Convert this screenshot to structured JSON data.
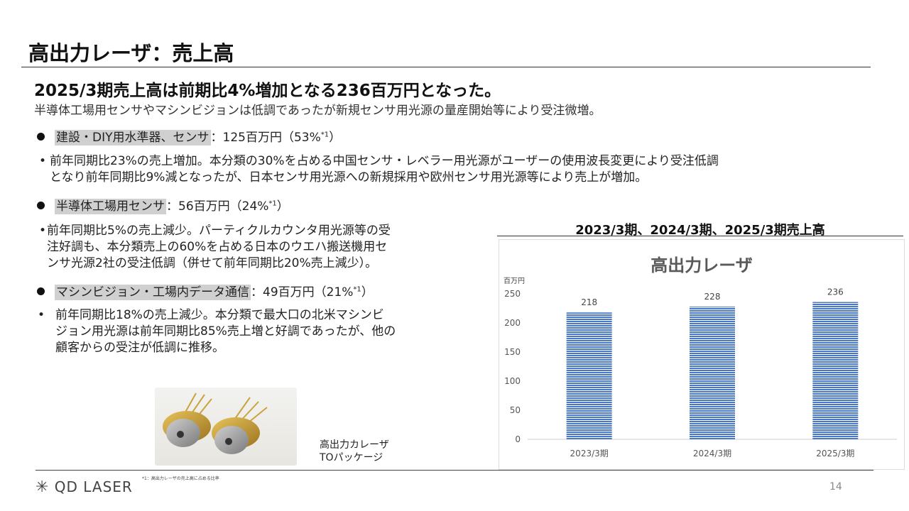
{
  "page": {
    "title": "高出力レーザ：売上高",
    "headline": "2025/3期売上高は前期比4%増加となる236百万円となった。",
    "subline": "半導体工場用センサやマシンビジョンは低調であったが新規センサ用光源の量産開始等により受注微増。"
  },
  "sections": [
    {
      "label": "建設・DIY用水準器、センサ",
      "value": "：125百万円（53%",
      "note": "*1",
      "close": "）",
      "details": [
        "前年同期比23%の売上増加。本分類の30%を占める中国センサ・レベラー用光源がユーザーの使用波長変更により受注低調",
        "となり前年同期比9%減となったが、日本センサ用光源への新規採用や欧州センサ用光源等により売上が増加。"
      ]
    },
    {
      "label": "半導体工場用センサ",
      "value": "：56百万円（24%",
      "note": "*1",
      "close": "）",
      "details": [
        "前年同期比5%の売上減少。パーティクルカウンタ用光源等の受",
        "注好調も、本分類売上の60%を占める日本のウエハ搬送機用セ",
        "ンサ光源2社の受注低調（併せて前年同期比20%売上減少）。"
      ]
    },
    {
      "label": "マシンビジョン・工場内データ通信",
      "value": "：49百万円（21%",
      "note": "*1",
      "close": "）",
      "details": [
        "前年同期比18%の売上減少。本分類で最大口の北米マシンビ",
        "ジョン用光源は前年同期比85%売上増と好調であったが、他の",
        "顧客からの受注が低調に推移。"
      ]
    }
  ],
  "photo": {
    "caption_line1": "高出力カレーザ",
    "caption_line2": "TOパッケージ"
  },
  "chart_heading": "2023/3期、2024/3期、2025/3期売上高",
  "chart_data": {
    "type": "bar",
    "title": "高出力レーザ",
    "ylabel": "百万円",
    "categories": [
      "2023/3期",
      "2024/3期",
      "2025/3期"
    ],
    "values": [
      218,
      228,
      236
    ],
    "ylim": [
      0,
      250
    ],
    "yticks": [
      0,
      50,
      100,
      150,
      200,
      250
    ],
    "bar_color": "#4a78c9",
    "grid": false,
    "legend": "none"
  },
  "footer": {
    "logo_text": "QD LASER",
    "footnote": "*1：高出力レーザの売上高に占める比率",
    "page_number": "14"
  }
}
